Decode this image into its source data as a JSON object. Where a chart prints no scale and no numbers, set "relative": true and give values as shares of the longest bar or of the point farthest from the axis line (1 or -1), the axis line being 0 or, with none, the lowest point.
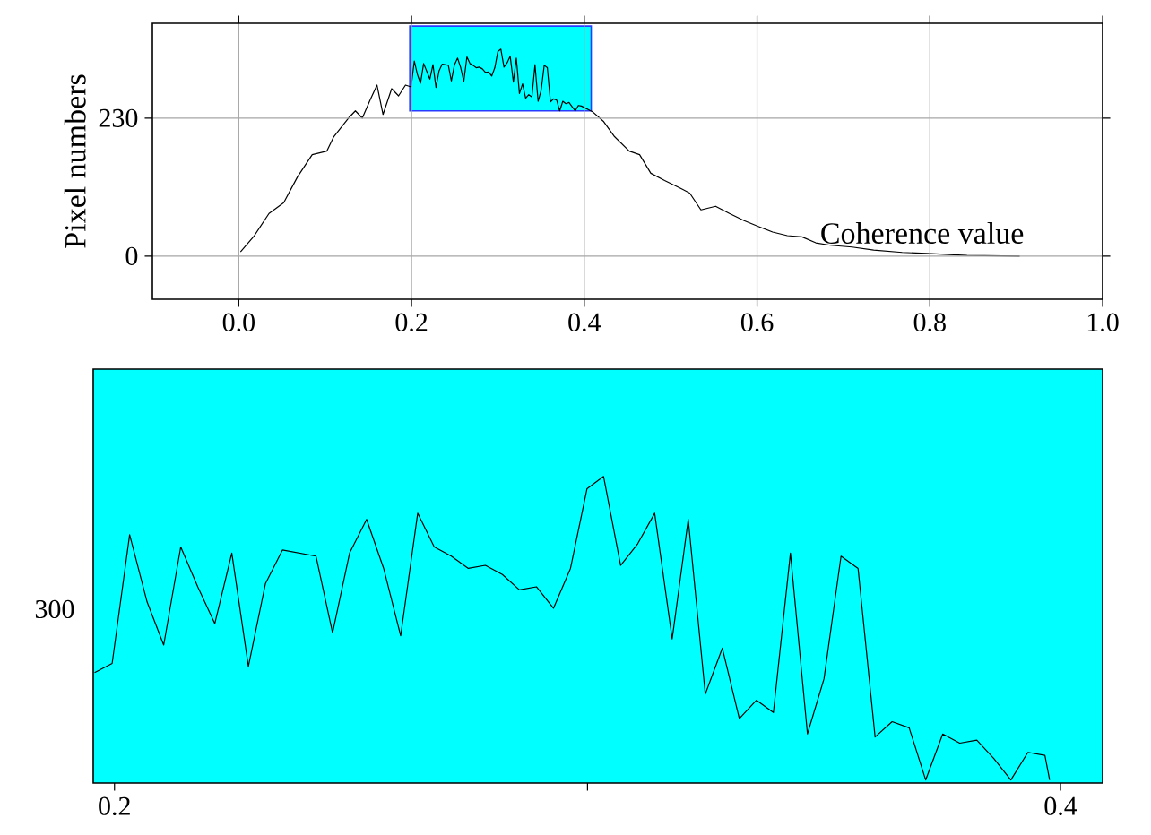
{
  "chart_data": [
    {
      "type": "line",
      "ylabel": "Pixel numbers",
      "xlabel": "Coherence value",
      "color": "#000000",
      "grid": true,
      "xlim": [
        -0.1,
        1.0
      ],
      "ylim": [
        -72,
        388
      ],
      "xticks": [
        {
          "value": 0.0,
          "label": "0.0"
        },
        {
          "value": 0.2,
          "label": "0.2"
        },
        {
          "value": 0.4,
          "label": "0.4"
        },
        {
          "value": 0.6,
          "label": "0.6"
        },
        {
          "value": 0.8,
          "label": "0.8"
        },
        {
          "value": 1.0,
          "label": "1.0"
        }
      ],
      "yticks": [
        0,
        230
      ],
      "bands": [
        {
          "axis": "x",
          "from": 0.198,
          "to": 0.408,
          "color": "#00ffff"
        }
      ],
      "x": [
        0.002,
        0.018,
        0.035,
        0.052,
        0.068,
        0.085,
        0.102,
        0.11,
        0.127,
        0.135,
        0.143,
        0.152,
        0.16,
        0.167,
        0.177,
        0.185,
        0.193,
        0.1995,
        0.2032,
        0.2069,
        0.2104,
        0.214,
        0.2176,
        0.2212,
        0.2248,
        0.2283,
        0.2319,
        0.2355,
        0.2426,
        0.2461,
        0.2497,
        0.2533,
        0.2569,
        0.2605,
        0.2641,
        0.2676,
        0.2712,
        0.2748,
        0.2784,
        0.282,
        0.2856,
        0.2892,
        0.2928,
        0.2964,
        0.2999,
        0.3034,
        0.307,
        0.3106,
        0.3142,
        0.3179,
        0.3213,
        0.3249,
        0.3285,
        0.3321,
        0.3357,
        0.3393,
        0.3429,
        0.3465,
        0.35,
        0.3536,
        0.3572,
        0.3608,
        0.3644,
        0.368,
        0.3715,
        0.3751,
        0.3787,
        0.3823,
        0.3859,
        0.3895,
        0.3931,
        0.3967,
        0.41,
        0.4225,
        0.435,
        0.452,
        0.464,
        0.477,
        0.493,
        0.51,
        0.522,
        0.535,
        0.552,
        0.568,
        0.585,
        0.602,
        0.618,
        0.635,
        0.652,
        0.668,
        0.685,
        0.71,
        0.735,
        0.768,
        0.802,
        0.843,
        0.904
      ],
      "values": [
        7,
        34,
        71,
        89,
        132,
        169,
        175,
        199,
        230,
        242,
        230,
        260,
        285,
        236,
        279,
        267,
        285,
        282,
        325,
        302,
        288,
        321,
        308,
        295,
        319,
        281,
        309,
        320,
        318,
        292,
        319,
        330,
        314,
        291,
        332,
        321,
        318,
        314,
        315,
        312,
        306,
        307,
        300,
        314,
        341,
        345,
        315,
        322,
        333,
        290,
        330,
        271,
        287,
        263,
        269,
        265,
        319,
        258,
        276,
        318,
        314,
        257,
        262,
        260,
        242,
        258,
        254,
        256,
        249,
        242,
        251,
        250,
        240,
        224,
        199,
        175,
        169,
        138,
        126,
        114,
        105,
        77,
        83,
        71,
        59,
        49,
        40,
        34,
        32,
        22,
        18,
        15,
        10,
        6,
        4,
        1,
        0
      ]
    },
    {
      "type": "line",
      "color": "#000000",
      "relative": true,
      "annotations": [
        "300"
      ],
      "xlim": [
        0.1955,
        0.4089
      ],
      "xticks": [
        {
          "value": 0.2,
          "label": "0.2"
        },
        {
          "value": 0.3,
          "label": null
        },
        {
          "value": 0.4,
          "label": "0.4"
        }
      ],
      "bands": [
        {
          "axis": "x",
          "from": 0.1955,
          "to": 0.4089,
          "color": "#00ffff"
        }
      ],
      "x": [
        0.1958,
        0.1995,
        0.2032,
        0.2069,
        0.2104,
        0.214,
        0.2176,
        0.2212,
        0.2248,
        0.2283,
        0.2319,
        0.2355,
        0.2426,
        0.2461,
        0.2497,
        0.2533,
        0.2569,
        0.2605,
        0.2641,
        0.2676,
        0.2712,
        0.2748,
        0.2784,
        0.282,
        0.2856,
        0.2892,
        0.2928,
        0.2964,
        0.2999,
        0.3034,
        0.307,
        0.3106,
        0.3142,
        0.3179,
        0.3213,
        0.3249,
        0.3285,
        0.3321,
        0.3357,
        0.3393,
        0.3429,
        0.3465,
        0.35,
        0.3536,
        0.3572,
        0.3608,
        0.3644,
        0.368,
        0.3715,
        0.3751,
        0.3787,
        0.3823,
        0.3859,
        0.3895,
        0.3931,
        0.3967,
        0.3977
      ],
      "values": [
        0.36,
        0.39,
        0.81,
        0.59,
        0.45,
        0.77,
        0.64,
        0.52,
        0.75,
        0.38,
        0.65,
        0.76,
        0.74,
        0.49,
        0.75,
        0.86,
        0.7,
        0.48,
        0.88,
        0.77,
        0.74,
        0.7,
        0.71,
        0.68,
        0.63,
        0.64,
        0.57,
        0.7,
        0.96,
        1,
        0.71,
        0.78,
        0.88,
        0.47,
        0.86,
        0.29,
        0.44,
        0.21,
        0.27,
        0.23,
        0.75,
        0.16,
        0.34,
        0.74,
        0.7,
        0.15,
        0.2,
        0.18,
        0.01,
        0.16,
        0.13,
        0.14,
        0.08,
        0.01,
        0.1,
        0.09,
        0.01
      ]
    }
  ]
}
